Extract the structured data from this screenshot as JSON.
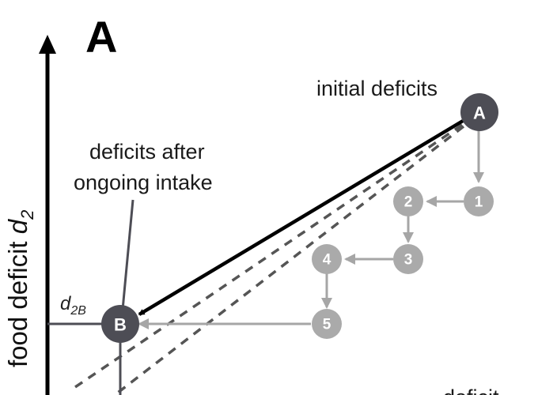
{
  "panel_label": "A",
  "y_axis": {
    "label_text": "food deficit ",
    "label_var": "d",
    "label_sub": "2"
  },
  "labels": {
    "initial": "initial deficits",
    "after_line1": "deficits after",
    "after_line2": "ongoing intake",
    "partial_text": "deficit"
  },
  "d2B": {
    "var": "d",
    "sub": "2B"
  },
  "nodes": {
    "A": "A",
    "B": "B",
    "steps": [
      "1",
      "2",
      "3",
      "4",
      "5"
    ]
  },
  "colors": {
    "dark_node": "#4d4d55",
    "light_node": "#aaaaaa",
    "light_arrow": "#a6a6a6",
    "main_arrow": "#000000",
    "dashed": "#555555",
    "axis": "#000000"
  }
}
